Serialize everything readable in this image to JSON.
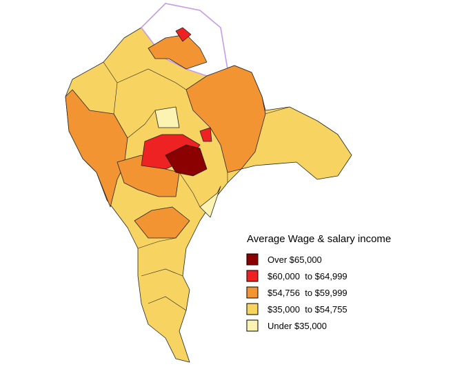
{
  "legend": {
    "title": "Average Wage & salary income",
    "items": [
      {
        "label": "Over $65,000",
        "color": "#8b0000"
      },
      {
        "label": "$60,000  to $64,999",
        "color": "#ee2222"
      },
      {
        "label": "$54,756  to $59,999",
        "color": "#f39432"
      },
      {
        "label": "$35,000  to $54,755",
        "color": "#f7d462"
      },
      {
        "label": "Under $35,000",
        "color": "#fcf3b2"
      }
    ]
  }
}
